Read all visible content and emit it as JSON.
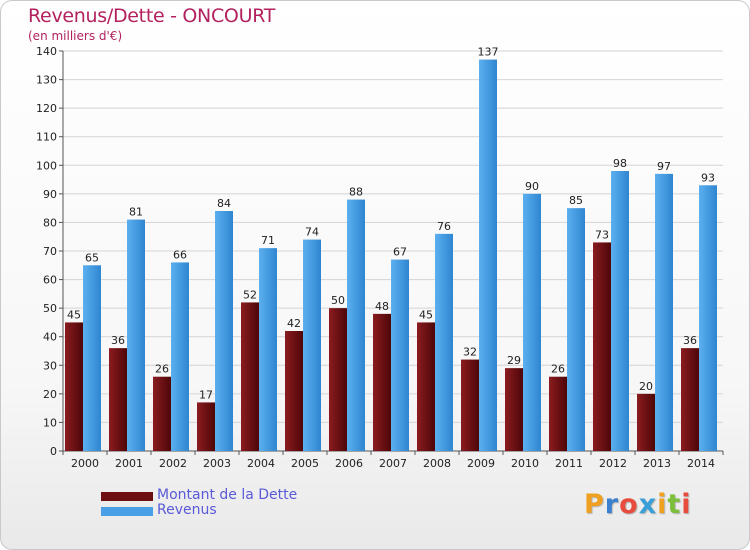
{
  "title": "Revenus/Dette - ONCOURT",
  "subtitle": "(en milliers d'€)",
  "colors": {
    "debt": "#6d0f12",
    "revenue": "#4aa0e6",
    "title": "#b3225e",
    "legend_text": "#5a5ad8"
  },
  "chart_data": {
    "type": "bar",
    "title": "Revenus/Dette - ONCOURT",
    "ylabel": "(en milliers d'€)",
    "xlabel": "",
    "ylim": [
      0,
      140
    ],
    "yticks": [
      0,
      10,
      20,
      30,
      40,
      50,
      60,
      70,
      80,
      90,
      100,
      110,
      120,
      130,
      140
    ],
    "grid": true,
    "legend_position": "bottom-left",
    "categories": [
      "2000",
      "2001",
      "2002",
      "2003",
      "2004",
      "2005",
      "2006",
      "2007",
      "2008",
      "2009",
      "2010",
      "2011",
      "2012",
      "2013",
      "2014"
    ],
    "series": [
      {
        "name": "Montant de la Dette",
        "color": "#6d0f12",
        "values": [
          45,
          36,
          26,
          17,
          52,
          42,
          50,
          48,
          45,
          32,
          29,
          26,
          73,
          20,
          36
        ]
      },
      {
        "name": "Revenus",
        "color": "#4aa0e6",
        "values": [
          65,
          81,
          66,
          84,
          71,
          74,
          88,
          67,
          76,
          137,
          90,
          85,
          98,
          97,
          93
        ]
      }
    ]
  },
  "legend": [
    {
      "label": "Montant de la Dette",
      "color": "#6d0f12"
    },
    {
      "label": "Revenus",
      "color": "#4aa0e6"
    }
  ],
  "logo": {
    "letters": [
      "P",
      "r",
      "o",
      "x",
      "i",
      "t",
      "i"
    ],
    "colors": [
      "#f0a020",
      "#3a7fd0",
      "#e84c3d",
      "#3a9fd8",
      "#f0a020",
      "#7bbf3a",
      "#e84c3d"
    ]
  }
}
